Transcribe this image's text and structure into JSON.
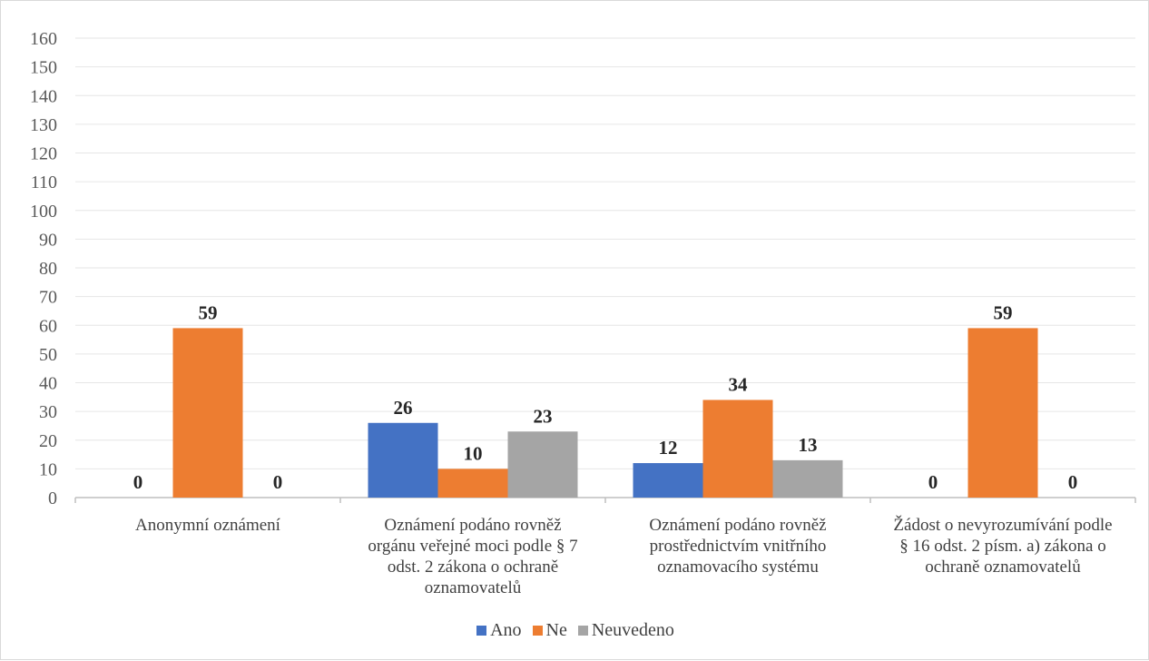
{
  "chart_data": {
    "type": "bar",
    "categories": [
      "Anonymní oznámení",
      "Oznámení podáno rovněž orgánu veřejné moci podle § 7 odst. 2 zákona o ochraně oznamovatelů",
      "Oznámení podáno rovněž prostřednictvím vnitřního oznamovacího systému",
      "Žádost o nevyrozumívání podle § 16 odst. 2 písm. a) zákona o ochraně oznamovatelů"
    ],
    "category_lines": [
      [
        "Anonymní oznámení"
      ],
      [
        "Oznámení podáno rovněž",
        "orgánu veřejné moci podle § 7",
        "odst. 2 zákona o ochraně",
        "oznamovatelů"
      ],
      [
        "Oznámení podáno rovněž",
        "prostřednictvím vnitřního",
        "oznamovacího systému"
      ],
      [
        "Žádost o nevyrozumívání podle",
        "§ 16 odst. 2 písm. a) zákona o",
        "ochraně oznamovatelů"
      ]
    ],
    "series": [
      {
        "name": "Ano",
        "values": [
          0,
          26,
          12,
          0
        ],
        "color": "#4472C4"
      },
      {
        "name": "Ne",
        "values": [
          59,
          10,
          34,
          59
        ],
        "color": "#ED7D31"
      },
      {
        "name": "Neuvedeno",
        "values": [
          0,
          23,
          13,
          0
        ],
        "color": "#A5A5A5"
      }
    ],
    "ylim": [
      0,
      160
    ],
    "ytick_step": 10,
    "grid": true,
    "legend_position": "bottom",
    "data_labels": true
  }
}
